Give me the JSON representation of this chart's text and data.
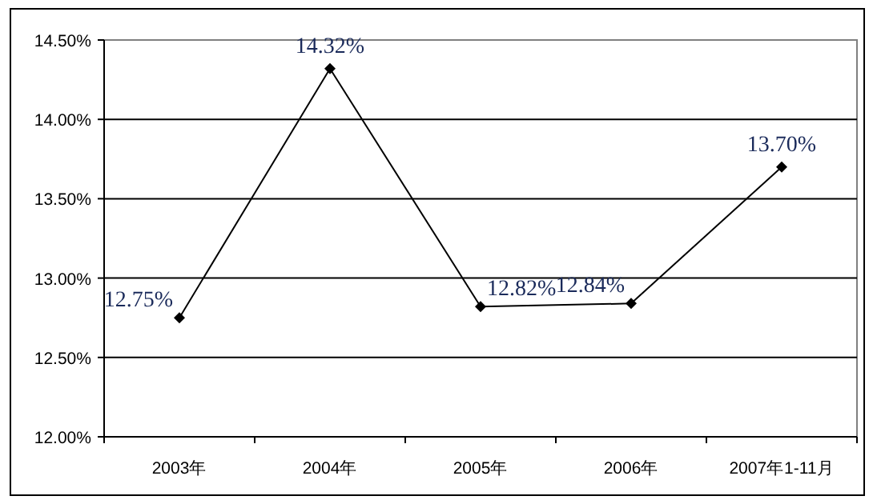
{
  "chart_data": {
    "type": "line",
    "categories": [
      "2003年",
      "2004年",
      "2005年",
      "2006年",
      "2007年1-11月"
    ],
    "series": [
      {
        "color": "#000000",
        "values": [
          12.75,
          14.32,
          12.82,
          12.84,
          13.7
        ],
        "value_labels": [
          "12.75%",
          "14.32%",
          "12.82%",
          "12.84%",
          "13.70%"
        ]
      }
    ],
    "ylim": [
      12.0,
      14.5
    ],
    "yticks": [
      {
        "value": 12.0,
        "label": "12.00%"
      },
      {
        "value": 12.5,
        "label": "12.50%"
      },
      {
        "value": 13.0,
        "label": "13.00%"
      },
      {
        "value": 13.5,
        "label": "13.50%"
      },
      {
        "value": 14.0,
        "label": "14.00%"
      },
      {
        "value": 14.5,
        "label": "14.50%"
      }
    ],
    "grid": "y",
    "marker": "diamond",
    "line_style": "solid"
  }
}
